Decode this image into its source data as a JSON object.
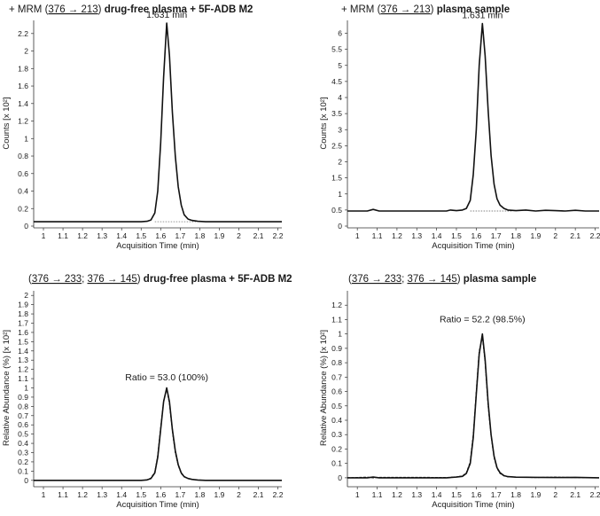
{
  "chart_data": [
    {
      "type": "line",
      "title": {
        "prefix": "+ MRM (",
        "transition": "376 → 213",
        "mid": ")",
        "bold": "drug-free plasma + 5F-ADB M2"
      },
      "xlabel": "Acquisition Time (min)",
      "ylabel": "Counts [x 10²]",
      "xlim": [
        0.95,
        2.22
      ],
      "ylim": [
        0,
        2.35
      ],
      "xticks": [
        1,
        1.1,
        1.2,
        1.3,
        1.4,
        1.5,
        1.6,
        1.7,
        1.8,
        1.9,
        2,
        2.1,
        2.2
      ],
      "yticks": [
        0,
        0.2,
        0.4,
        0.6,
        0.8,
        1,
        1.2,
        1.4,
        1.6,
        1.8,
        2,
        2.2
      ],
      "annotation": "1.631 min",
      "baseline": 0.05,
      "series": [
        {
          "x": [
            0.95,
            1.5,
            1.53,
            1.55,
            1.57,
            1.585,
            1.6,
            1.615,
            1.631,
            1.645,
            1.66,
            1.675,
            1.69,
            1.705,
            1.72,
            1.74,
            1.76,
            1.79,
            1.83,
            2.22
          ],
          "values": [
            0.05,
            0.05,
            0.055,
            0.07,
            0.15,
            0.4,
            0.95,
            1.7,
            2.32,
            1.95,
            1.3,
            0.8,
            0.45,
            0.24,
            0.13,
            0.08,
            0.065,
            0.055,
            0.05,
            0.05
          ]
        }
      ]
    },
    {
      "type": "line",
      "title": {
        "prefix": "+ MRM (",
        "transition": "376 → 213",
        "mid": ")",
        "bold": "plasma sample"
      },
      "xlabel": "Acquisition Time (min)",
      "ylabel": "Counts [x 10²]",
      "xlim": [
        0.95,
        2.22
      ],
      "ylim": [
        0,
        6.4
      ],
      "xticks": [
        1,
        1.1,
        1.2,
        1.3,
        1.4,
        1.5,
        1.6,
        1.7,
        1.8,
        1.9,
        2,
        2.1,
        2.2
      ],
      "yticks": [
        0,
        0.5,
        1,
        1.5,
        2,
        2.5,
        3,
        3.5,
        4,
        4.5,
        5,
        5.5,
        6
      ],
      "annotation": "1.631 min",
      "baseline": 0.47,
      "series": [
        {
          "x": [
            0.95,
            1.05,
            1.08,
            1.11,
            1.3,
            1.45,
            1.47,
            1.5,
            1.53,
            1.55,
            1.57,
            1.585,
            1.6,
            1.615,
            1.631,
            1.645,
            1.66,
            1.675,
            1.69,
            1.705,
            1.72,
            1.74,
            1.76,
            1.8,
            1.85,
            1.9,
            1.95,
            2.0,
            2.05,
            2.1,
            2.15,
            2.22
          ],
          "values": [
            0.47,
            0.47,
            0.52,
            0.47,
            0.47,
            0.47,
            0.5,
            0.48,
            0.5,
            0.55,
            0.8,
            1.6,
            3.0,
            5.0,
            6.3,
            5.3,
            3.6,
            2.2,
            1.3,
            0.85,
            0.65,
            0.55,
            0.5,
            0.48,
            0.5,
            0.47,
            0.49,
            0.48,
            0.47,
            0.49,
            0.47,
            0.47
          ]
        }
      ]
    },
    {
      "type": "line",
      "title": {
        "prefix": "(",
        "transition": "376 → 233",
        "sep": "; ",
        "transition2": "376 → 145",
        "mid": ")",
        "bold": "drug-free plasma + 5F-ADB M2"
      },
      "xlabel": "Acquisition Time (min)",
      "ylabel": "Relative Abundance (%)  [x 10²]",
      "xlim": [
        0.95,
        2.22
      ],
      "ylim": [
        -0.05,
        2.05
      ],
      "xticks": [
        1,
        1.1,
        1.2,
        1.3,
        1.4,
        1.5,
        1.6,
        1.7,
        1.8,
        1.9,
        2,
        2.1,
        2.2
      ],
      "yticks": [
        0,
        0.1,
        0.2,
        0.3,
        0.4,
        0.5,
        0.6,
        0.7,
        0.8,
        0.9,
        1,
        1.1,
        1.2,
        1.3,
        1.4,
        1.5,
        1.6,
        1.7,
        1.8,
        1.9,
        2
      ],
      "annotation": "Ratio = 53.0 (100%)",
      "series": [
        {
          "x": [
            0.95,
            1.5,
            1.53,
            1.55,
            1.57,
            1.585,
            1.6,
            1.615,
            1.631,
            1.645,
            1.66,
            1.675,
            1.69,
            1.705,
            1.72,
            1.74,
            1.76,
            1.79,
            1.83,
            2.22
          ],
          "values": [
            0,
            0,
            0.005,
            0.02,
            0.08,
            0.25,
            0.55,
            0.85,
            1.0,
            0.85,
            0.55,
            0.32,
            0.17,
            0.08,
            0.04,
            0.02,
            0.01,
            0.004,
            0,
            0
          ]
        },
        {
          "x": [
            0.95,
            1.5,
            1.53,
            1.55,
            1.57,
            1.585,
            1.6,
            1.615,
            1.631,
            1.645,
            1.66,
            1.675,
            1.69,
            1.705,
            1.72,
            1.74,
            1.76,
            1.79,
            1.83,
            2.22
          ],
          "values": [
            0,
            0,
            0.006,
            0.025,
            0.09,
            0.27,
            0.57,
            0.86,
            0.99,
            0.83,
            0.53,
            0.3,
            0.16,
            0.075,
            0.038,
            0.02,
            0.01,
            0.004,
            0,
            0
          ]
        }
      ]
    },
    {
      "type": "line",
      "title": {
        "prefix": "(",
        "transition": "376 → 233",
        "sep": "; ",
        "transition2": "376 → 145",
        "mid": ")",
        "bold": "plasma sample"
      },
      "xlabel": "Acquisition Time (min)",
      "ylabel": "Relative Abundance (%)  [x 10²]",
      "xlim": [
        0.95,
        2.22
      ],
      "ylim": [
        -0.05,
        1.3
      ],
      "xticks": [
        1,
        1.1,
        1.2,
        1.3,
        1.4,
        1.5,
        1.6,
        1.7,
        1.8,
        1.9,
        2,
        2.1,
        2.2
      ],
      "yticks": [
        0,
        0.1,
        0.2,
        0.3,
        0.4,
        0.5,
        0.6,
        0.7,
        0.8,
        0.9,
        1,
        1.1,
        1.2
      ],
      "annotation": "Ratio = 52.2 (98.5%)",
      "series": [
        {
          "x": [
            0.95,
            1.05,
            1.08,
            1.11,
            1.3,
            1.45,
            1.5,
            1.53,
            1.55,
            1.57,
            1.585,
            1.6,
            1.615,
            1.631,
            1.645,
            1.66,
            1.675,
            1.69,
            1.705,
            1.72,
            1.74,
            1.76,
            1.8,
            1.9,
            2.0,
            2.1,
            2.22
          ],
          "values": [
            0,
            0,
            0.005,
            0,
            0,
            0,
            0.005,
            0.01,
            0.03,
            0.1,
            0.28,
            0.58,
            0.86,
            1.0,
            0.82,
            0.52,
            0.3,
            0.15,
            0.07,
            0.035,
            0.015,
            0.008,
            0.004,
            0.003,
            0.002,
            0.003,
            0
          ]
        },
        {
          "x": [
            0.95,
            1.05,
            1.08,
            1.11,
            1.3,
            1.45,
            1.5,
            1.53,
            1.55,
            1.57,
            1.585,
            1.6,
            1.615,
            1.631,
            1.645,
            1.66,
            1.675,
            1.69,
            1.705,
            1.72,
            1.74,
            1.76,
            1.8,
            1.9,
            2.0,
            2.1,
            2.22
          ],
          "values": [
            0,
            0.004,
            0,
            0.003,
            0.003,
            0.002,
            0.006,
            0.012,
            0.035,
            0.11,
            0.3,
            0.6,
            0.88,
            0.98,
            0.8,
            0.5,
            0.29,
            0.14,
            0.065,
            0.03,
            0.013,
            0.007,
            0.005,
            0.002,
            0.004,
            0.002,
            0
          ]
        }
      ]
    }
  ]
}
